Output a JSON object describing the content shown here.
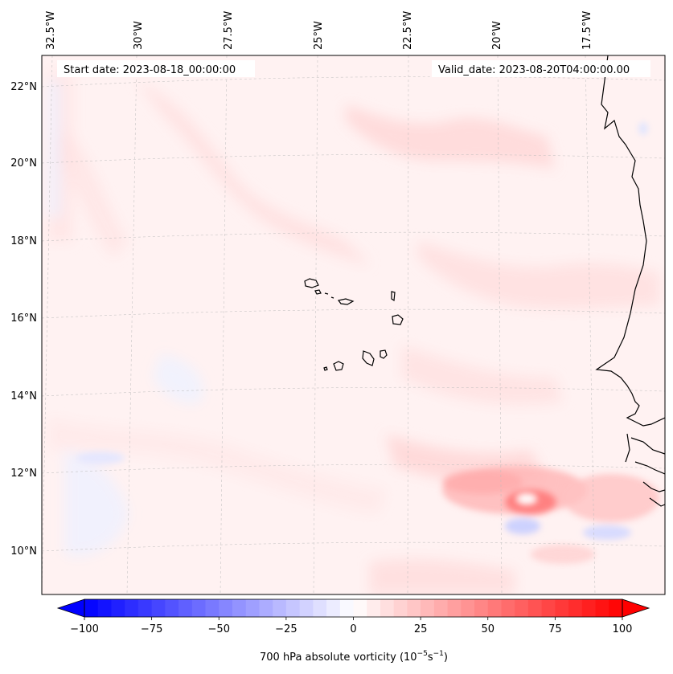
{
  "map": {
    "start_date_label": "Start date: 2023-08-18_00:00:00",
    "valid_date_label": "Valid_date: 2023-08-20T04:00:00.00",
    "longitude_labels": [
      "32.5°W",
      "30°W",
      "27.5°W",
      "25°W",
      "22.5°W",
      "20°W",
      "17.5°W"
    ],
    "latitude_labels": [
      "22°N",
      "20°N",
      "18°N",
      "16°N",
      "14°N",
      "12°N",
      "10°N"
    ],
    "background_color": "#fff2f2",
    "coastline_color": "#000000"
  },
  "colorbar": {
    "label": "700 hPa absolute vorticity (10",
    "label_exp": "−5",
    "label_unit": "s",
    "label_unit_exp": "−1",
    "label_close": ")",
    "min": -100,
    "max": 100,
    "ticks": [
      -100,
      -75,
      -50,
      -25,
      0,
      25,
      50,
      75,
      100
    ],
    "tick_labels": [
      "−100",
      "−75",
      "−50",
      "−25",
      "0",
      "25",
      "50",
      "75",
      "100"
    ],
    "color_min": "#0000ff",
    "color_zero": "#ffffff",
    "color_max": "#ff0000",
    "levels": 40
  }
}
